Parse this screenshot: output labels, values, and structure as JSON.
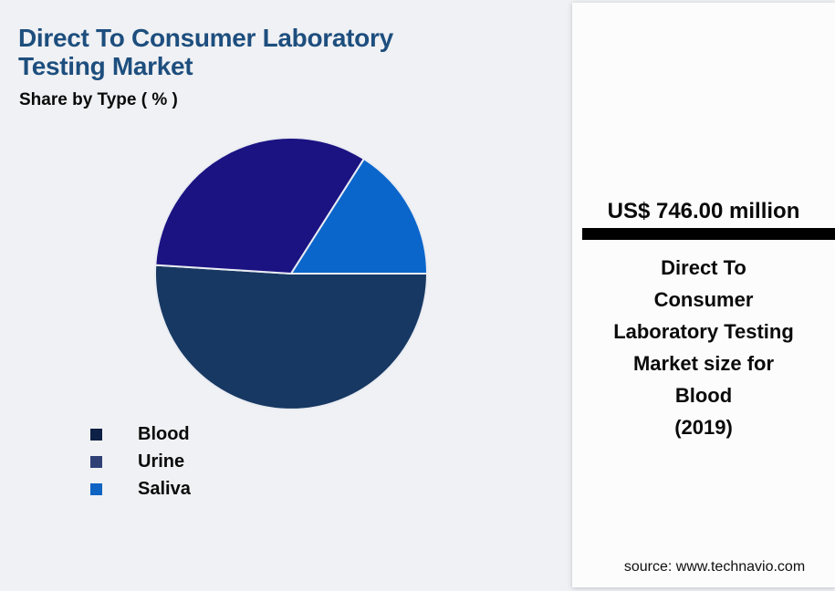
{
  "header": {
    "title": "Direct To Consumer Laboratory Testing Market",
    "subtitle": "Share by Type ( % )"
  },
  "chart_data": {
    "type": "pie",
    "title": "Direct To Consumer Laboratory Testing Market",
    "subtitle": "Share by Type ( % )",
    "categories": [
      "Blood",
      "Urine",
      "Saliva"
    ],
    "values": [
      51,
      33,
      16
    ],
    "unit": "%",
    "start_angle_deg_clockwise_from_top": 90,
    "direction": "clockwise",
    "slice_colors": [
      "#173862",
      "#1b1382",
      "#0b66cb"
    ],
    "legend_marker_colors": [
      "#0d2045",
      "#2f4075",
      "#0f63c2"
    ],
    "slice_border_color": "#e9ecf2",
    "legend_position": "bottom-left",
    "data_labels": false
  },
  "panel": {
    "value": "US$ 746.00 million",
    "description_lines": [
      "Direct To",
      "Consumer",
      "Laboratory Testing",
      "Market size for",
      "Blood",
      "(2019)"
    ],
    "source": "source: www.technavio.com"
  },
  "colors": {
    "background": "#f0f1f4",
    "panel": "#fcfcfd",
    "title": "#1d4e7e",
    "divider": "#000000",
    "text": "#0a0a0a"
  }
}
